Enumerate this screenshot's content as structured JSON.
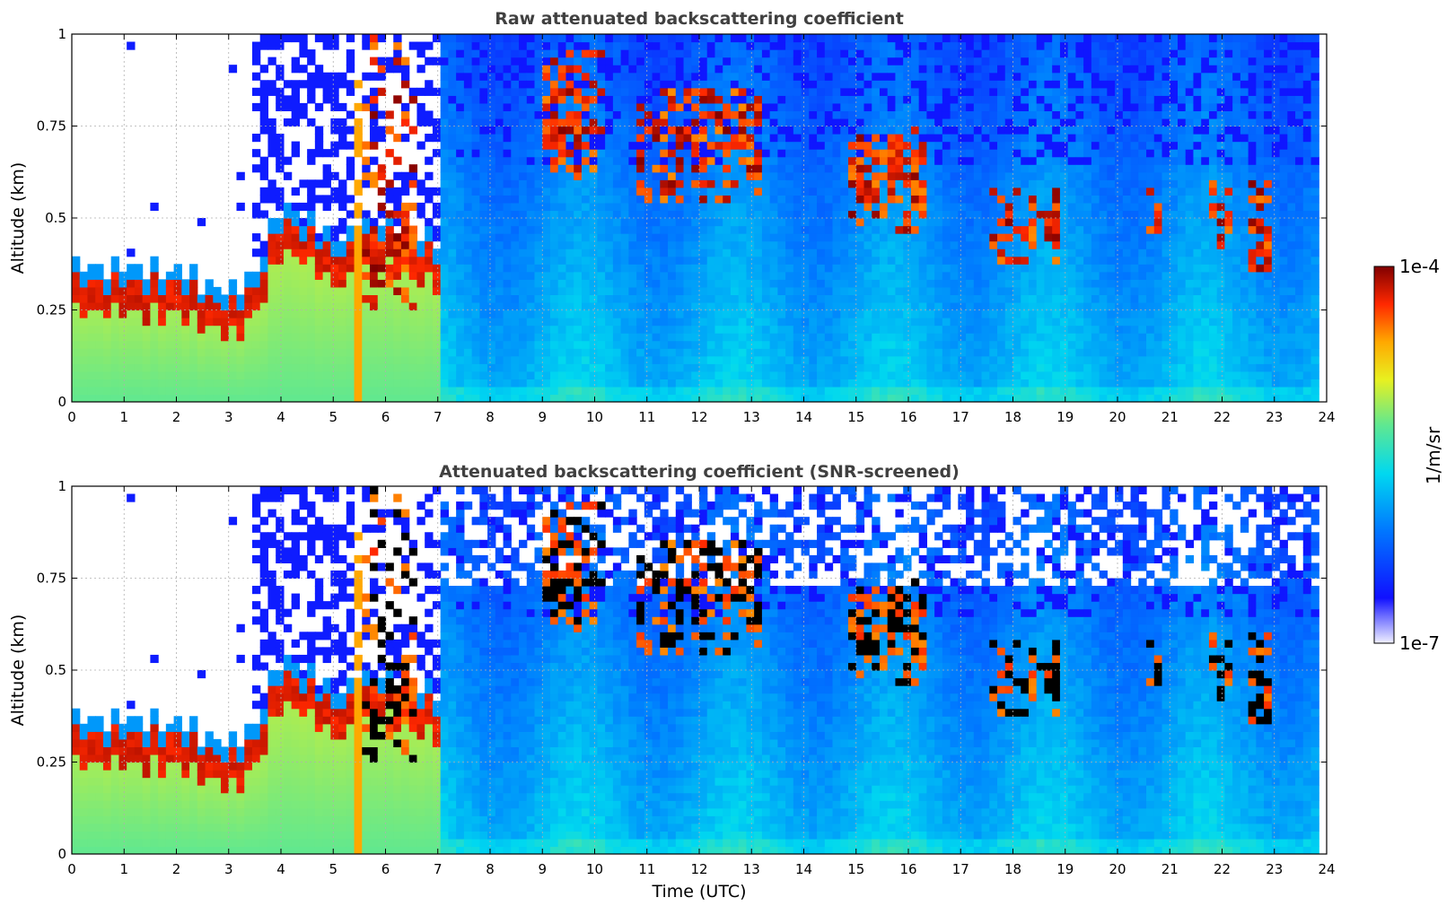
{
  "chart_data": [
    {
      "type": "heatmap",
      "title": "Raw attenuated backscattering coefficient",
      "xlabel": "",
      "ylabel": "Altitude (km)",
      "xlim": [
        0,
        24
      ],
      "ylim": [
        0,
        1
      ],
      "xticks": [
        "0",
        "1",
        "2",
        "3",
        "4",
        "5",
        "6",
        "7",
        "8",
        "9",
        "10",
        "11",
        "12",
        "13",
        "14",
        "15",
        "16",
        "17",
        "18",
        "19",
        "20",
        "21",
        "22",
        "23",
        "24"
      ],
      "yticks": [
        "0",
        "0.25",
        "0.5",
        "0.75",
        "1"
      ],
      "grid": true,
      "data_extent_hours": [
        0,
        23.8
      ],
      "features": {
        "boundary_layer_top_km": [
          [
            0,
            0.32
          ],
          [
            1,
            0.33
          ],
          [
            2,
            0.31
          ],
          [
            3,
            0.27
          ],
          [
            3.5,
            0.3
          ],
          [
            4,
            0.5
          ],
          [
            5,
            0.4
          ],
          [
            6,
            0.45
          ],
          [
            7,
            0.4
          ]
        ],
        "cloud_patches": [
          {
            "t_start": 5.4,
            "t_end": 6.6,
            "alt_low": 0.25,
            "alt_high": 1.0
          },
          {
            "t_start": 9.0,
            "t_end": 10.2,
            "alt_low": 0.6,
            "alt_high": 0.95
          },
          {
            "t_start": 10.8,
            "t_end": 13.2,
            "alt_low": 0.55,
            "alt_high": 0.85
          },
          {
            "t_start": 14.9,
            "t_end": 16.3,
            "alt_low": 0.45,
            "alt_high": 0.75
          },
          {
            "t_start": 17.6,
            "t_end": 18.9,
            "alt_low": 0.38,
            "alt_high": 0.58
          },
          {
            "t_start": 20.5,
            "t_end": 20.8,
            "alt_low": 0.45,
            "alt_high": 0.6
          },
          {
            "t_start": 21.8,
            "t_end": 22.2,
            "alt_low": 0.4,
            "alt_high": 0.6
          },
          {
            "t_start": 22.5,
            "t_end": 23.0,
            "alt_low": 0.35,
            "alt_high": 0.6
          }
        ]
      }
    },
    {
      "type": "heatmap",
      "title": "Attenuated backscattering coefficient (SNR-screened)",
      "xlabel": "Time (UTC)",
      "ylabel": "Altitude (km)",
      "xlim": [
        0,
        24
      ],
      "ylim": [
        0,
        1
      ],
      "xticks": [
        "0",
        "1",
        "2",
        "3",
        "4",
        "5",
        "6",
        "7",
        "8",
        "9",
        "10",
        "11",
        "12",
        "13",
        "14",
        "15",
        "16",
        "17",
        "18",
        "19",
        "20",
        "21",
        "22",
        "23",
        "24"
      ],
      "yticks": [
        "0",
        "0.25",
        "0.5",
        "0.75",
        "1"
      ],
      "grid": true,
      "screened": true,
      "data_extent_hours": [
        0,
        23.8
      ]
    }
  ],
  "colorbar": {
    "min_label": "1e-7",
    "max_label": "1e-4",
    "label": "1/m/sr",
    "colormap": [
      "#f0f0ff",
      "#1010ff",
      "#0077ff",
      "#00d8f0",
      "#60e890",
      "#d8f020",
      "#ffb000",
      "#ff3000",
      "#800000"
    ]
  }
}
